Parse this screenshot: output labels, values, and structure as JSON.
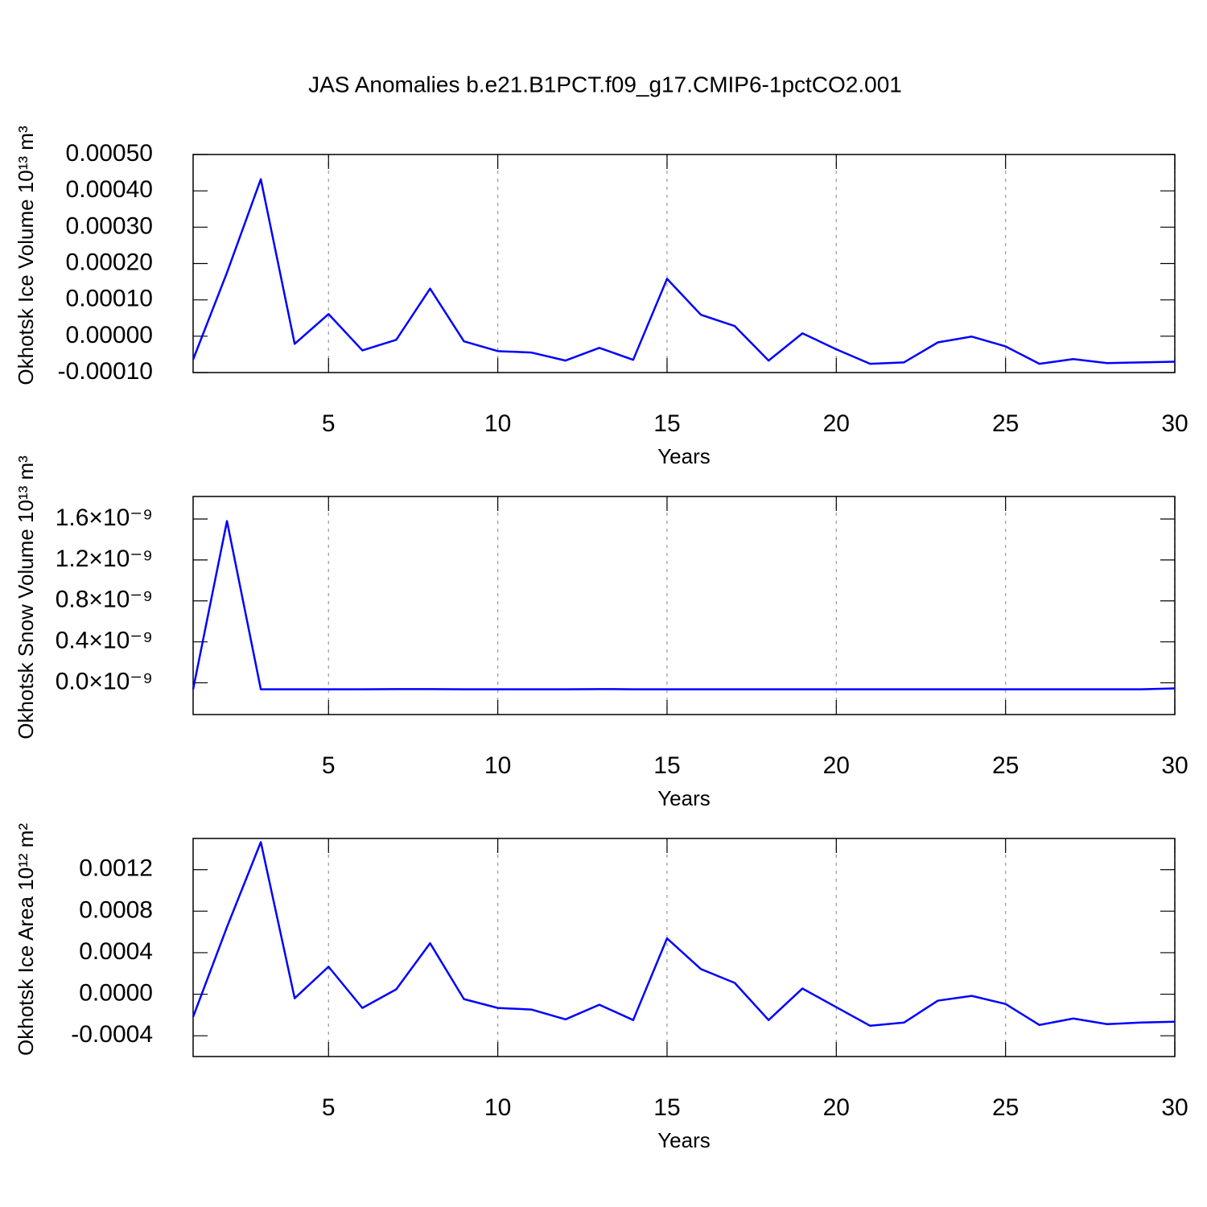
{
  "chart_data": [
    {
      "type": "line",
      "title": "JAS Anomalies b.e21.B1PCT.f09_g17.CMIP6-1pctCO2.001",
      "ylabel": "Okhotsk Ice Volume 10¹³ m³",
      "xlabel": "Years",
      "x": [
        1,
        2,
        3,
        4,
        5,
        6,
        7,
        8,
        9,
        10,
        11,
        12,
        13,
        14,
        15,
        16,
        17,
        18,
        19,
        20,
        21,
        22,
        23,
        24,
        25,
        26,
        27,
        28,
        29,
        30
      ],
      "values": [
        -6.4e-05,
        0.000175,
        0.000432,
        -2.1e-05,
        6.1e-05,
        -3.9e-05,
        -1e-05,
        0.000131,
        -1.4e-05,
        -4.1e-05,
        -4.5e-05,
        -6.7e-05,
        -3.2e-05,
        -6.5e-05,
        0.000158,
        5.9e-05,
        2.8e-05,
        -6.7e-05,
        8e-06,
        -3.6e-05,
        -7.6e-05,
        -7.2e-05,
        -1.7e-05,
        -1e-06,
        -2.8e-05,
        -7.6e-05,
        -6.3e-05,
        -7.4e-05,
        -7.2e-05,
        -7e-05
      ],
      "color": "#0000ff",
      "xlim": [
        1,
        30
      ],
      "xticks": [
        5,
        10,
        15,
        20,
        25,
        30
      ],
      "ylim": [
        -0.0001,
        0.0005
      ],
      "yticks": [
        {
          "value": -0.0001,
          "label": "-0.00010"
        },
        {
          "value": 0,
          "label": "0.00000"
        },
        {
          "value": 0.0001,
          "label": "0.00010"
        },
        {
          "value": 0.0002,
          "label": "0.00020"
        },
        {
          "value": 0.0003,
          "label": "0.00030"
        },
        {
          "value": 0.0004,
          "label": "0.00040"
        },
        {
          "value": 0.0005,
          "label": "0.00050"
        }
      ],
      "grid": true
    },
    {
      "type": "line",
      "ylabel": "Okhotsk Snow Volume 10¹³ m³",
      "xlabel": "Years",
      "x": [
        1,
        2,
        3,
        4,
        5,
        6,
        7,
        8,
        9,
        10,
        11,
        12,
        13,
        14,
        15,
        16,
        17,
        18,
        19,
        20,
        21,
        22,
        23,
        24,
        25,
        26,
        27,
        28,
        29,
        30
      ],
      "values": [
        -6.3e-11,
        1.58e-09,
        -6.3e-11,
        -6.3e-11,
        -6.3e-11,
        -6.3e-11,
        -6.1e-11,
        -6.1e-11,
        -6.3e-11,
        -6.3e-11,
        -6.3e-11,
        -6.3e-11,
        -6.1e-11,
        -6.3e-11,
        -6.3e-11,
        -6.3e-11,
        -6.3e-11,
        -6.3e-11,
        -6.3e-11,
        -6.3e-11,
        -6.3e-11,
        -6.3e-11,
        -6.3e-11,
        -6.3e-11,
        -6.3e-11,
        -6.3e-11,
        -6.3e-11,
        -6.3e-11,
        -6.3e-11,
        -5.5e-11
      ],
      "color": "#0000ff",
      "xlim": [
        1,
        30
      ],
      "xticks": [
        5,
        10,
        15,
        20,
        25,
        30
      ],
      "ylim": [
        -3.1e-10,
        1.82e-09
      ],
      "yticks": [
        {
          "value": 0,
          "label": "0.0×10⁻⁹"
        },
        {
          "value": 4e-10,
          "label": "0.4×10⁻⁹"
        },
        {
          "value": 8e-10,
          "label": "0.8×10⁻⁹"
        },
        {
          "value": 1.2e-09,
          "label": "1.2×10⁻⁹"
        },
        {
          "value": 1.6e-09,
          "label": "1.6×10⁻⁹"
        }
      ],
      "grid": true
    },
    {
      "type": "line",
      "ylabel": "Okhotsk Ice Area 10¹² m²",
      "xlabel": "Years",
      "x": [
        1,
        2,
        3,
        4,
        5,
        6,
        7,
        8,
        9,
        10,
        11,
        12,
        13,
        14,
        15,
        16,
        17,
        18,
        19,
        20,
        21,
        22,
        23,
        24,
        25,
        26,
        27,
        28,
        29,
        30
      ],
      "values": [
        -0.000218,
        0.000647,
        0.001465,
        -3.9e-05,
        0.000265,
        -0.000132,
        4.7e-05,
        0.000491,
        -4.7e-05,
        -0.000132,
        -0.000148,
        -0.000242,
        -0.000101,
        -0.000249,
        0.000538,
        0.000242,
        0.000109,
        -0.000249,
        5.5e-05,
        -0.000125,
        -0.000304,
        -0.000273,
        -6.2e-05,
        -1.6e-05,
        -9.4e-05,
        -0.000296,
        -0.000234,
        -0.000288,
        -0.000273,
        -0.000265
      ],
      "color": "#0000ff",
      "xlim": [
        1,
        30
      ],
      "xticks": [
        5,
        10,
        15,
        20,
        25,
        30
      ],
      "ylim": [
        -0.0006,
        0.0015
      ],
      "yticks": [
        {
          "value": -0.0004,
          "label": "-0.0004"
        },
        {
          "value": 0,
          "label": "0.0000"
        },
        {
          "value": 0.0004,
          "label": "0.0004"
        },
        {
          "value": 0.0008,
          "label": "0.0008"
        },
        {
          "value": 0.0012,
          "label": "0.0012"
        }
      ],
      "grid": true
    }
  ]
}
